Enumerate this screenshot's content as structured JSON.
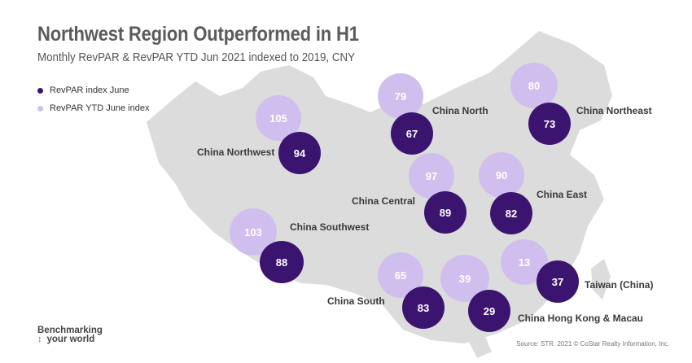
{
  "title": "Northwest Region Outperformed in H1",
  "subtitle": "Monthly RevPAR & RevPAR YTD Jun 2021 indexed to 2019, CNY",
  "legend": {
    "june_label": "RevPAR index June",
    "ytd_label": "RevPAR YTD June index"
  },
  "colors": {
    "june": "#3b1470",
    "ytd": "#d0bfee",
    "map_land": "#dcdcdc"
  },
  "regions": [
    {
      "name": "China Northwest",
      "june": "94",
      "ytd": "105"
    },
    {
      "name": "China North",
      "june": "67",
      "ytd": "79"
    },
    {
      "name": "China Northeast",
      "june": "73",
      "ytd": "80"
    },
    {
      "name": "China Central",
      "june": "89",
      "ytd": "97"
    },
    {
      "name": "China East",
      "june": "82",
      "ytd": "90"
    },
    {
      "name": "China Southwest",
      "june": "88",
      "ytd": "103"
    },
    {
      "name": "China South",
      "june": "83",
      "ytd": "65"
    },
    {
      "name": "China Hong Kong & Macau",
      "june": "29",
      "ytd": "39"
    },
    {
      "name": "Taiwan (China)",
      "june": "37",
      "ytd": "13"
    }
  ],
  "footer": {
    "logo_line1": "Benchmarking",
    "logo_line2": "your world",
    "source": "Source: STR. 2021 © CoStar Realty Information, Inc."
  }
}
